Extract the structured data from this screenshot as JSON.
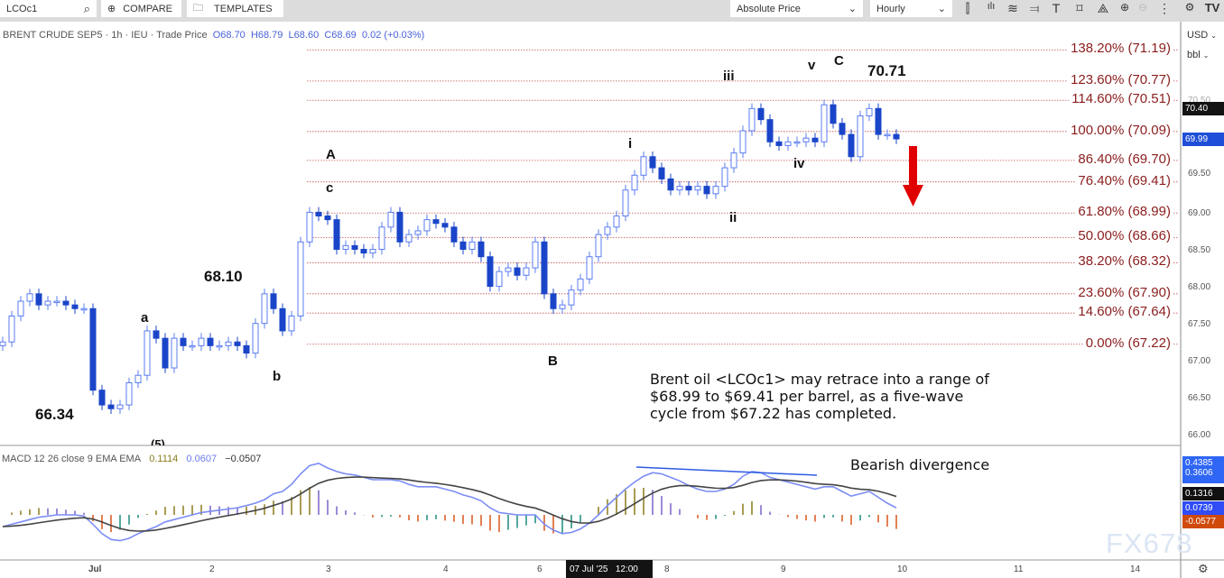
{
  "toolbar": {
    "symbol": "LCOc1",
    "compare": "COMPARE",
    "templates": "TEMPLATES",
    "price_mode": "Absolute Price",
    "interval": "Hourly",
    "icons": [
      "candles-icon",
      "indicators-icon",
      "studies-icon",
      "crosshair-icon",
      "text-icon",
      "rectangle-icon",
      "shape-icon",
      "zoom-in-icon",
      "zoom-out-icon",
      "more-icon",
      "settings-icon",
      "tradingview-logo-icon"
    ]
  },
  "header": {
    "title": "BRENT CRUDE SEP5 · 1h · IEU  · Trade Price",
    "open": "O68.70",
    "high": "H68.79",
    "low": "L68.60",
    "close": "C68.69",
    "change": "0.02 (+0.03%)"
  },
  "currency": "USD",
  "unit": "bbl",
  "annotations": {
    "A": "A",
    "c": "c",
    "a": "a",
    "b": "b",
    "B": "B",
    "i": "i",
    "ii": "ii",
    "iii": "iii",
    "iv": "iv",
    "v": "v",
    "C": "C",
    "p6810": "68.10",
    "p6634": "66.34",
    "p7071": "70.71",
    "e5": "(5)"
  },
  "fib_levels": [
    {
      "label": "138.20% (71.19)",
      "price": 71.19
    },
    {
      "label": "123.60% (70.77)",
      "price": 70.77
    },
    {
      "label": "114.60% (70.51)",
      "price": 70.51
    },
    {
      "label": "100.00% (70.09)",
      "price": 70.09
    },
    {
      "label": "86.40% (69.70)",
      "price": 69.7
    },
    {
      "label": "76.40% (69.41)",
      "price": 69.41
    },
    {
      "label": "61.80% (68.99)",
      "price": 68.99
    },
    {
      "label": "50.00% (68.66)",
      "price": 68.66
    },
    {
      "label": "38.20% (68.32)",
      "price": 68.32
    },
    {
      "label": "23.60% (67.90)",
      "price": 67.9
    },
    {
      "label": "14.60% (67.64)",
      "price": 67.64
    },
    {
      "label": "0.00% (67.22)",
      "price": 67.22
    }
  ],
  "note": [
    "Brent oil <LCOc1> may retrace into a range of",
    "$68.99 to $69.41 per barrel, as a five-wave",
    "cycle from $67.22 has completed."
  ],
  "price_axis": [
    "70.50",
    "69.50",
    "69.00",
    "68.50",
    "68.00",
    "67.50",
    "67.00",
    "66.50",
    "66.00"
  ],
  "badges": {
    "high": "70.40",
    "last": "69.99",
    "macd_top": "0.4385",
    "macd_sig": "0.3606",
    "macd_mid": "0.1316",
    "macd_low": "0.0739",
    "macd_hist": "-0.0577"
  },
  "macd": {
    "title": "MACD  12 26 close 9 EMA EMA",
    "v1": "0.1114",
    "v2": "0.0607",
    "v3": "−0.0507",
    "divergence": "Bearish divergence"
  },
  "time_axis": [
    "Jul",
    "2",
    "3",
    "4",
    "6",
    "8",
    "9",
    "10",
    "11",
    "14"
  ],
  "crosshair_time": "07 Jul '25   12:00",
  "watermark": "FX678",
  "colors": {
    "bull": "#5b7cf0",
    "bear": "#1a45c9",
    "fib": "#c0504d",
    "arrow": "#e00000",
    "macd": "#7b8cf5",
    "signal": "#444444"
  },
  "chart_data": {
    "type": "candlestick",
    "ylim": [
      66.0,
      71.3
    ],
    "closes": [
      67.25,
      67.6,
      67.8,
      67.9,
      67.75,
      67.8,
      67.8,
      67.75,
      67.7,
      67.7,
      66.6,
      66.4,
      66.35,
      66.4,
      66.7,
      66.8,
      67.4,
      67.3,
      66.9,
      67.3,
      67.2,
      67.2,
      67.3,
      67.2,
      67.2,
      67.25,
      67.2,
      67.1,
      67.5,
      67.9,
      67.7,
      67.4,
      67.6,
      68.6,
      69.0,
      68.95,
      68.9,
      68.5,
      68.55,
      68.5,
      68.45,
      68.5,
      68.8,
      69.0,
      68.6,
      68.7,
      68.75,
      68.9,
      68.85,
      68.8,
      68.6,
      68.5,
      68.6,
      68.4,
      68.0,
      68.2,
      68.25,
      68.15,
      68.25,
      68.6,
      67.9,
      67.7,
      67.75,
      67.95,
      68.1,
      68.4,
      68.7,
      68.8,
      68.95,
      69.3,
      69.5,
      69.75,
      69.6,
      69.45,
      69.3,
      69.35,
      69.3,
      69.35,
      69.25,
      69.35,
      69.6,
      69.8,
      70.1,
      70.4,
      70.25,
      69.95,
      69.9,
      69.95,
      69.95,
      70.0,
      69.95,
      70.45,
      70.2,
      70.05,
      69.75,
      70.3,
      70.4,
      70.05,
      70.05,
      69.99
    ],
    "macd": [
      -0.1,
      -0.08,
      -0.06,
      -0.04,
      -0.02,
      -0.01,
      0,
      0,
      0,
      -0.01,
      -0.08,
      -0.16,
      -0.21,
      -0.22,
      -0.2,
      -0.16,
      -0.13,
      -0.1,
      -0.06,
      -0.04,
      -0.02,
      0,
      0.02,
      0.03,
      0.04,
      0.05,
      0.06,
      0.08,
      0.1,
      0.13,
      0.18,
      0.2,
      0.26,
      0.35,
      0.42,
      0.44,
      0.4,
      0.37,
      0.35,
      0.34,
      0.32,
      0.3,
      0.3,
      0.3,
      0.29,
      0.26,
      0.24,
      0.24,
      0.24,
      0.22,
      0.2,
      0.17,
      0.15,
      0.12,
      0.06,
      0.02,
      0.01,
      0,
      0,
      0,
      -0.08,
      -0.13,
      -0.16,
      -0.15,
      -0.12,
      -0.07,
      0,
      0.08,
      0.15,
      0.22,
      0.28,
      0.33,
      0.36,
      0.35,
      0.32,
      0.29,
      0.25,
      0.22,
      0.2,
      0.2,
      0.22,
      0.26,
      0.33,
      0.37,
      0.36,
      0.32,
      0.3,
      0.28,
      0.26,
      0.24,
      0.22,
      0.24,
      0.24,
      0.2,
      0.16,
      0.18,
      0.2,
      0.15,
      0.1,
      0.06
    ]
  }
}
